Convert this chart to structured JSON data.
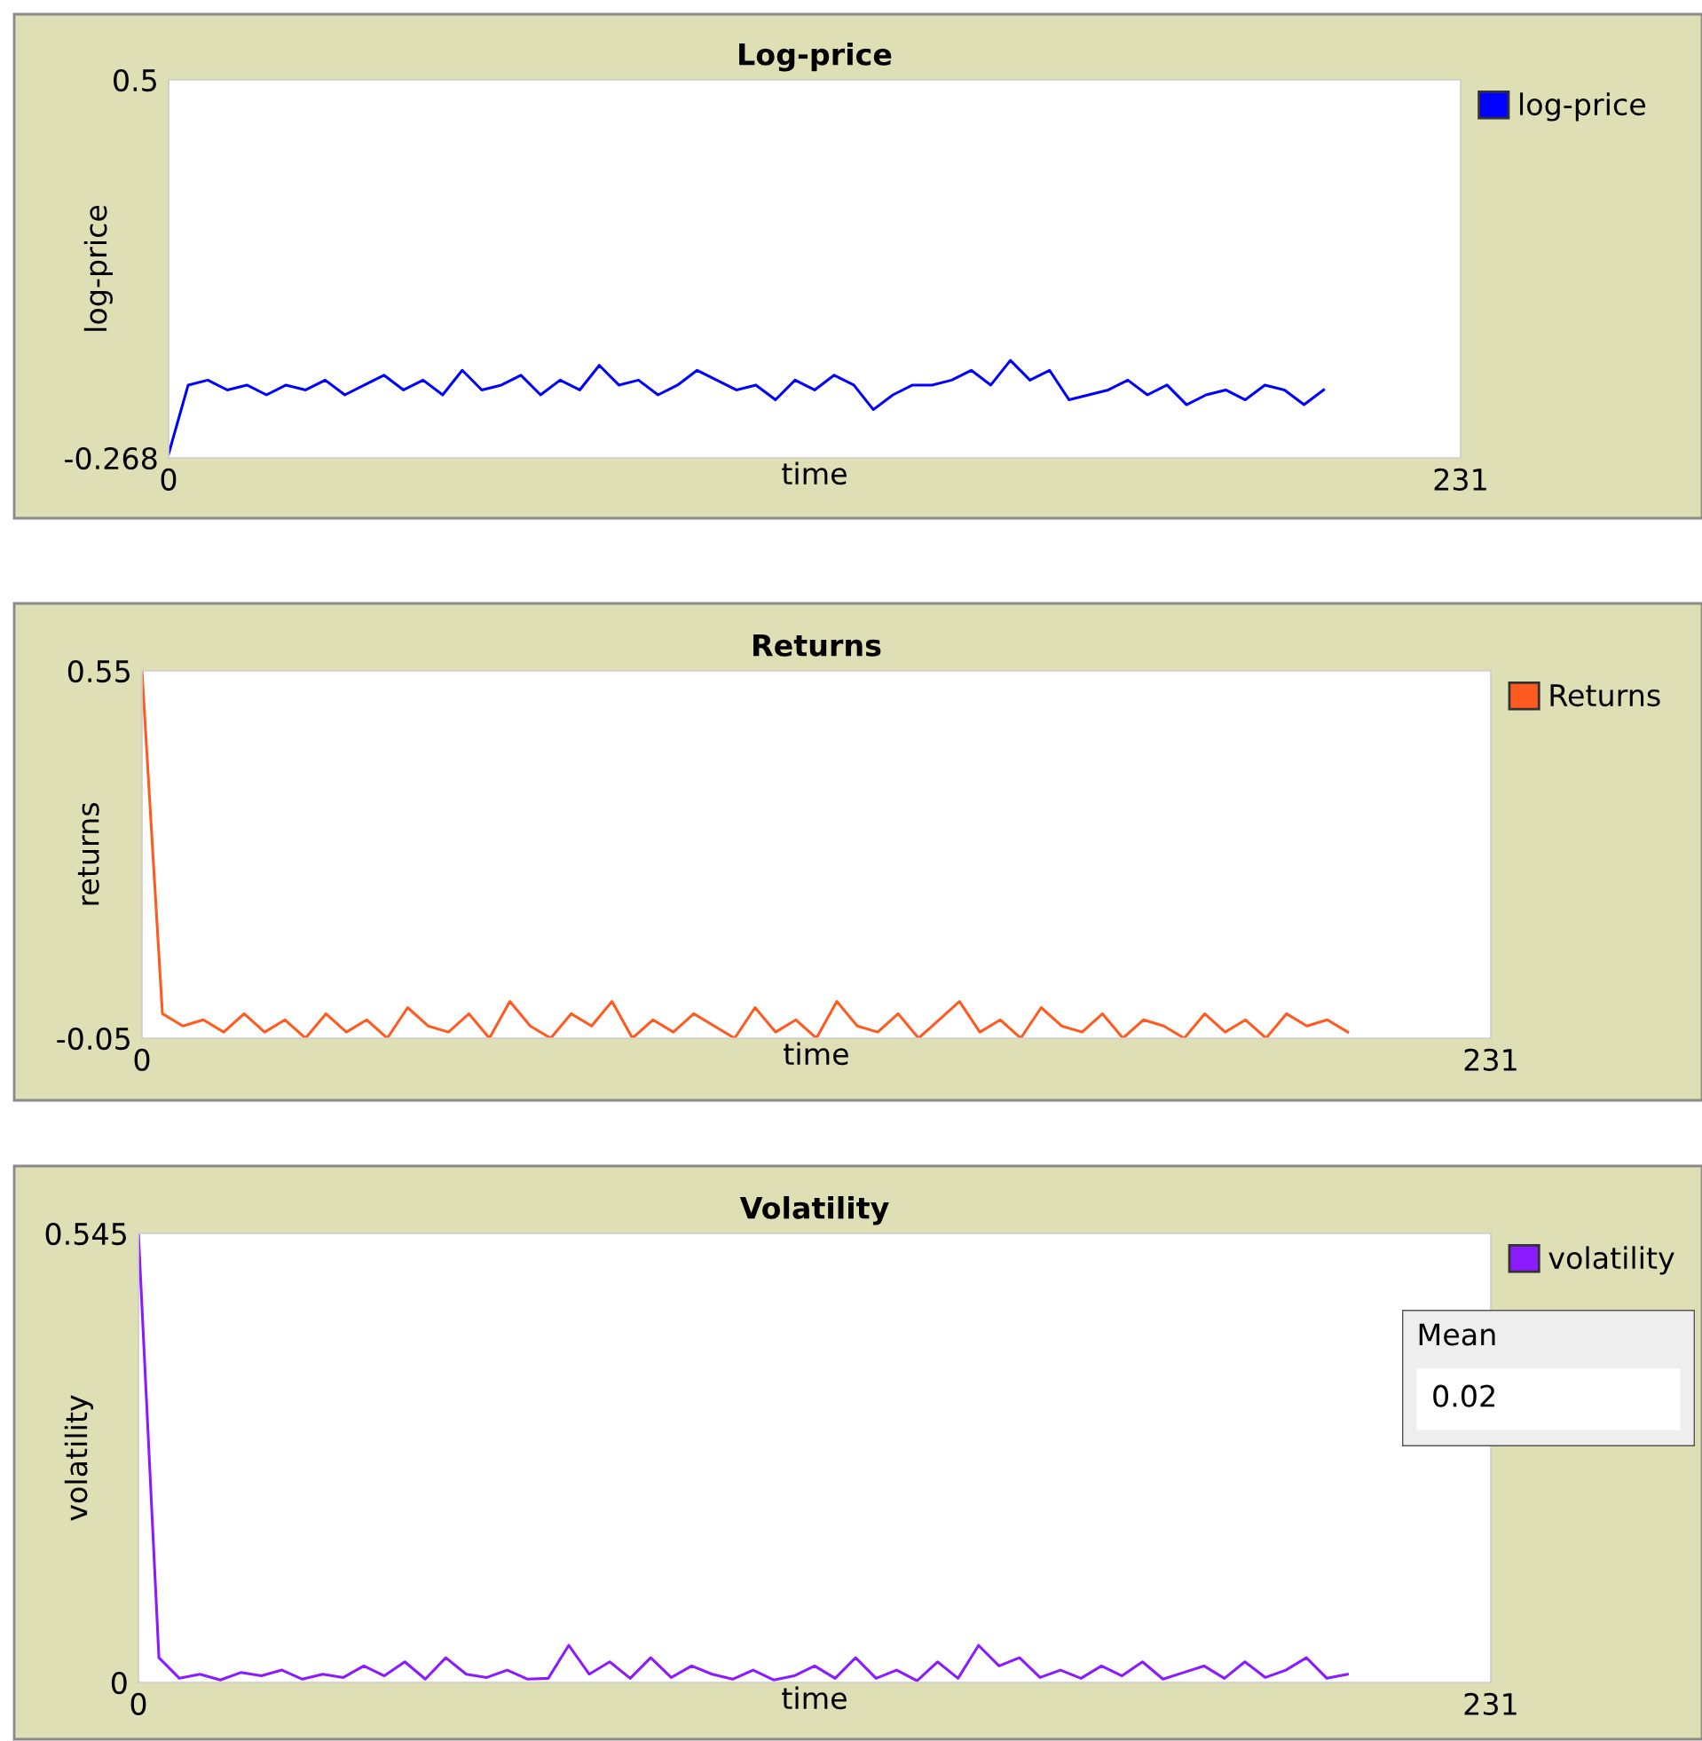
{
  "chart_data": [
    {
      "type": "line",
      "title": "Log-price",
      "xlabel": "time",
      "ylabel": "log-price",
      "xlim": [
        0,
        231
      ],
      "xticks": [
        0,
        231
      ],
      "ylim": [
        -0.268,
        0.5
      ],
      "yticks": [
        -0.268,
        0.5
      ],
      "legend": "top right",
      "grid": false,
      "x": [
        0,
        3.5,
        7,
        10.5,
        14,
        17.5,
        21,
        24.5,
        28,
        31.5,
        35,
        38.5,
        42,
        45.5,
        49,
        52.5,
        56,
        59.5,
        63,
        66.5,
        70,
        73.5,
        77,
        80.5,
        84,
        87.5,
        91,
        94.5,
        98,
        101.5,
        105,
        108.5,
        112,
        115.5,
        119,
        122.5,
        126,
        129.5,
        133,
        136.5,
        140,
        143.5,
        147,
        150.5,
        154,
        157.5,
        161,
        164.5,
        168,
        171.5,
        175,
        178.5,
        182,
        185.5,
        189,
        192.5,
        196,
        199.5,
        203,
        206.5
      ],
      "series": [
        {
          "name": "log-price",
          "color": "#0000ff",
          "values": [
            -0.26,
            -0.12,
            -0.11,
            -0.13,
            -0.12,
            -0.14,
            -0.12,
            -0.13,
            -0.11,
            -0.14,
            -0.12,
            -0.1,
            -0.13,
            -0.11,
            -0.14,
            -0.09,
            -0.13,
            -0.12,
            -0.1,
            -0.14,
            -0.11,
            -0.13,
            -0.08,
            -0.12,
            -0.11,
            -0.14,
            -0.12,
            -0.09,
            -0.11,
            -0.13,
            -0.12,
            -0.15,
            -0.11,
            -0.13,
            -0.1,
            -0.12,
            -0.17,
            -0.14,
            -0.12,
            -0.12,
            -0.11,
            -0.09,
            -0.12,
            -0.07,
            -0.11,
            -0.09,
            -0.15,
            -0.14,
            -0.13,
            -0.11,
            -0.14,
            -0.12,
            -0.16,
            -0.14,
            -0.13,
            -0.15,
            -0.12,
            -0.13,
            -0.16,
            -0.13
          ]
        }
      ]
    },
    {
      "type": "line",
      "title": "Returns",
      "xlabel": "time",
      "ylabel": "returns",
      "xlim": [
        0,
        231
      ],
      "xticks": [
        0,
        231
      ],
      "ylim": [
        -0.05,
        0.55
      ],
      "yticks": [
        -0.05,
        0.55
      ],
      "legend": "top right",
      "grid": false,
      "x": [
        0,
        3.5,
        7,
        10.5,
        14,
        17.5,
        21,
        24.5,
        28,
        31.5,
        35,
        38.5,
        42,
        45.5,
        49,
        52.5,
        56,
        59.5,
        63,
        66.5,
        70,
        73.5,
        77,
        80.5,
        84,
        87.5,
        91,
        94.5,
        98,
        101.5,
        105,
        108.5,
        112,
        115.5,
        119,
        122.5,
        126,
        129.5,
        133,
        136.5,
        140,
        143.5,
        147,
        150.5,
        154,
        157.5,
        161,
        164.5,
        168,
        171.5,
        175,
        178.5,
        182,
        185.5,
        189,
        192.5,
        196,
        199.5,
        203,
        206.5
      ],
      "series": [
        {
          "name": "Returns",
          "color": "#ff5a1f",
          "values": [
            0.55,
            -0.01,
            -0.03,
            -0.02,
            -0.04,
            -0.01,
            -0.04,
            -0.02,
            -0.05,
            -0.01,
            -0.04,
            -0.02,
            -0.05,
            0.0,
            -0.03,
            -0.04,
            -0.01,
            -0.05,
            0.01,
            -0.03,
            -0.05,
            -0.01,
            -0.03,
            0.01,
            -0.05,
            -0.02,
            -0.04,
            -0.01,
            -0.03,
            -0.05,
            0.0,
            -0.04,
            -0.02,
            -0.05,
            0.01,
            -0.03,
            -0.04,
            -0.01,
            -0.05,
            -0.02,
            0.01,
            -0.04,
            -0.02,
            -0.05,
            0.0,
            -0.03,
            -0.04,
            -0.01,
            -0.05,
            -0.02,
            -0.03,
            -0.05,
            -0.01,
            -0.04,
            -0.02,
            -0.05,
            -0.01,
            -0.03,
            -0.02,
            -0.04
          ]
        }
      ]
    },
    {
      "type": "line",
      "title": "Volatility",
      "xlabel": "time",
      "ylabel": "volatility",
      "xlim": [
        0,
        231
      ],
      "xticks": [
        0,
        231
      ],
      "ylim": [
        0,
        0.545
      ],
      "yticks": [
        0,
        0.545
      ],
      "legend": "top right",
      "grid": false,
      "x": [
        0,
        3.5,
        7,
        10.5,
        14,
        17.5,
        21,
        24.5,
        28,
        31.5,
        35,
        38.5,
        42,
        45.5,
        49,
        52.5,
        56,
        59.5,
        63,
        66.5,
        70,
        73.5,
        77,
        80.5,
        84,
        87.5,
        91,
        94.5,
        98,
        101.5,
        105,
        108.5,
        112,
        115.5,
        119,
        122.5,
        126,
        129.5,
        133,
        136.5,
        140,
        143.5,
        147,
        150.5,
        154,
        157.5,
        161,
        164.5,
        168,
        171.5,
        175,
        178.5,
        182,
        185.5,
        189,
        192.5,
        196,
        199.5,
        203,
        206.5
      ],
      "series": [
        {
          "name": "volatility",
          "color": "#8c1aff",
          "values": [
            0.545,
            0.03,
            0.005,
            0.01,
            0.003,
            0.012,
            0.008,
            0.015,
            0.004,
            0.01,
            0.006,
            0.02,
            0.008,
            0.025,
            0.004,
            0.03,
            0.01,
            0.006,
            0.015,
            0.004,
            0.005,
            0.045,
            0.01,
            0.025,
            0.005,
            0.03,
            0.006,
            0.02,
            0.01,
            0.004,
            0.015,
            0.003,
            0.008,
            0.02,
            0.005,
            0.03,
            0.005,
            0.015,
            0.002,
            0.025,
            0.005,
            0.045,
            0.02,
            0.03,
            0.006,
            0.015,
            0.005,
            0.02,
            0.008,
            0.025,
            0.004,
            0.012,
            0.02,
            0.005,
            0.025,
            0.006,
            0.015,
            0.03,
            0.005,
            0.01
          ]
        }
      ]
    },
    {
      "type": "other",
      "title": "Mean",
      "annotations": [
        "0.02"
      ]
    }
  ]
}
